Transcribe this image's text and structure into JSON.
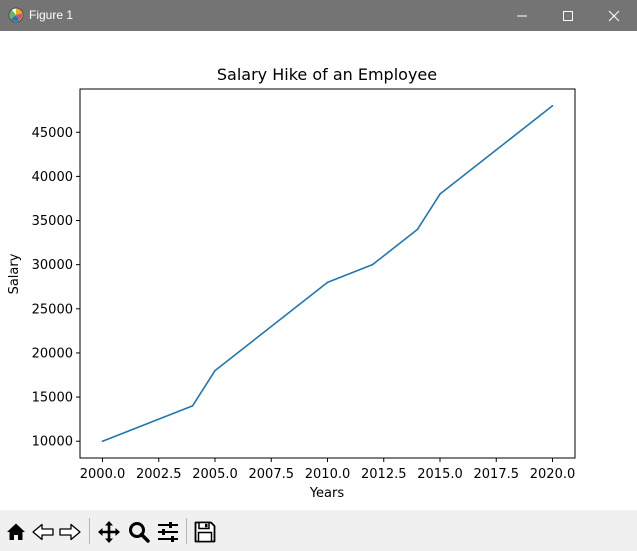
{
  "window": {
    "title": "Figure 1",
    "icons": [
      "matplotlib-logo-icon",
      "minimize-icon",
      "maximize-icon",
      "close-icon"
    ]
  },
  "toolbar": {
    "icons": [
      "home-icon",
      "back-arrow-icon",
      "forward-arrow-icon",
      "pan-move-icon",
      "zoom-magnifier-icon",
      "configure-subplots-icon",
      "save-floppy-icon"
    ]
  },
  "colors": {
    "titlebar": "#747474",
    "line": "#1f77b4",
    "toolbar": "#f0f0f0"
  },
  "chart_data": {
    "type": "line",
    "title": "Salary Hike of an Employee",
    "xlabel": "Years",
    "ylabel": "Salary",
    "x": [
      2000,
      2004,
      2005,
      2010,
      2012,
      2014,
      2015,
      2020
    ],
    "series": [
      {
        "values": [
          10000,
          14000,
          18000,
          28000,
          30000,
          34000,
          38000,
          48000
        ]
      }
    ],
    "xlim": [
      1999,
      2021
    ],
    "ylim": [
      8100,
      49900
    ],
    "xticks": [
      "2000.0",
      "2002.5",
      "2005.0",
      "2007.5",
      "2010.0",
      "2012.5",
      "2015.0",
      "2017.5",
      "2020.0"
    ],
    "yticks": [
      "10000",
      "15000",
      "20000",
      "25000",
      "30000",
      "35000",
      "40000",
      "45000"
    ],
    "grid": false
  }
}
